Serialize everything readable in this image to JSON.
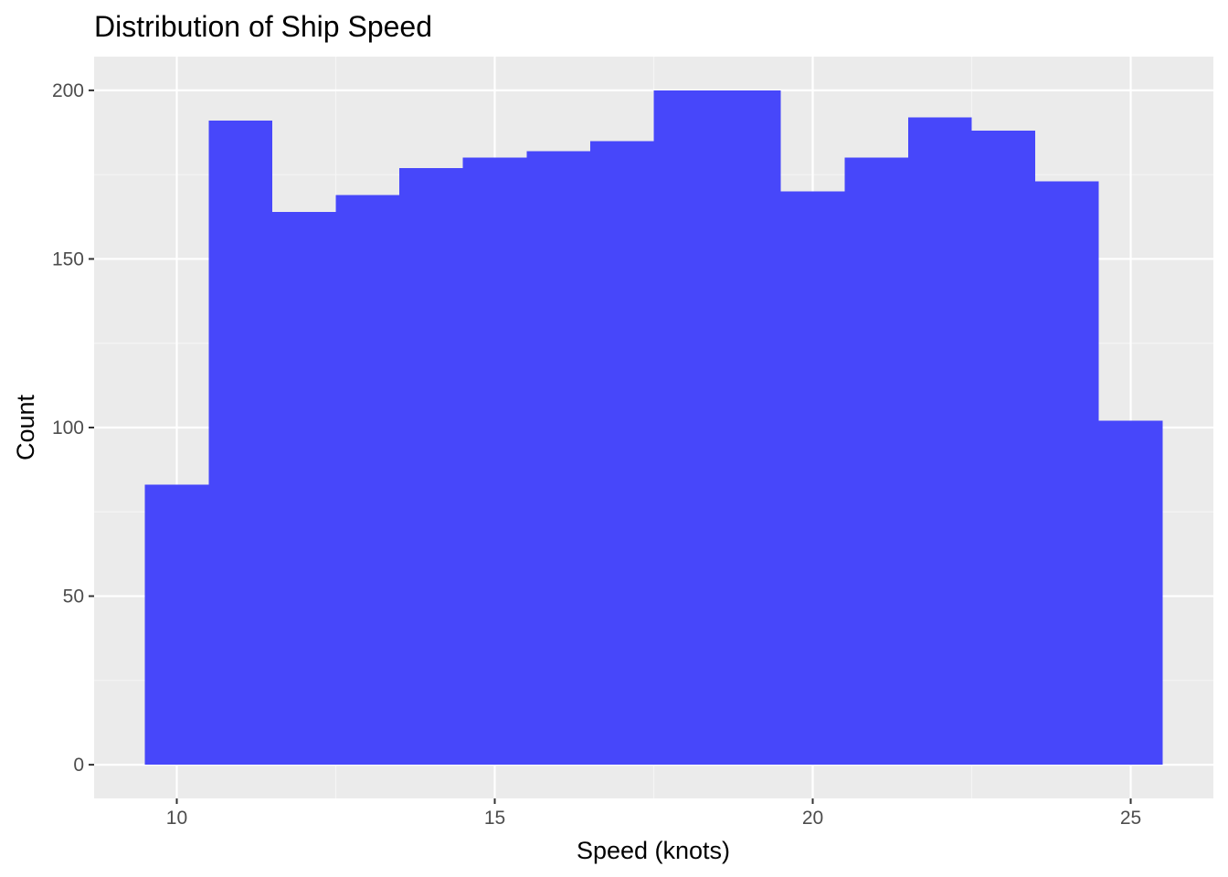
{
  "chart_data": {
    "type": "bar",
    "subtype": "histogram",
    "title": "Distribution of Ship Speed",
    "xlabel": "Speed (knots)",
    "ylabel": "Count",
    "bin_width": 1,
    "bin_centers": [
      10,
      11,
      12,
      13,
      14,
      15,
      16,
      17,
      18,
      19,
      20,
      21,
      22,
      23,
      24,
      25
    ],
    "values": [
      83,
      191,
      164,
      169,
      177,
      180,
      182,
      185,
      200,
      200,
      170,
      180,
      192,
      188,
      173,
      102
    ],
    "xlim": [
      8.7,
      26.3
    ],
    "ylim": [
      -10,
      210
    ],
    "x_ticks": [
      10,
      15,
      20,
      25
    ],
    "x_tick_labels": [
      "10",
      "15",
      "20",
      "25"
    ],
    "y_ticks": [
      0,
      50,
      100,
      150,
      200
    ],
    "y_tick_labels": [
      "0",
      "50",
      "100",
      "150",
      "200"
    ],
    "x_minor_gridlines": [
      12.5,
      17.5,
      22.5
    ],
    "y_minor_gridlines": [
      25,
      75,
      125,
      175
    ],
    "grid": true,
    "legend": "none"
  },
  "colors": {
    "bar_fill": "#4747fa",
    "panel_background": "#ebebeb",
    "grid_major": "#ffffff",
    "grid_minor": "#f5f5f5",
    "tick_mark": "#333333"
  }
}
